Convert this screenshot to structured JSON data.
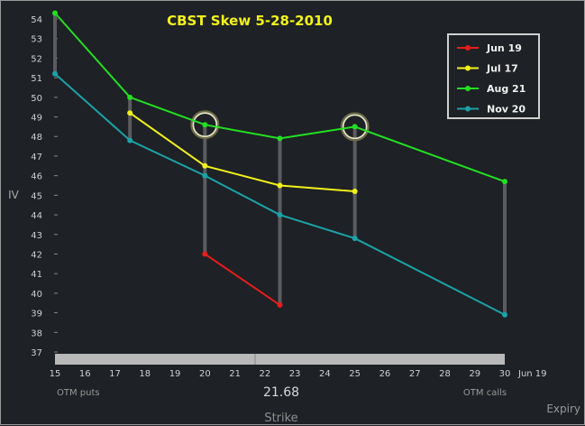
{
  "chart_data": {
    "type": "line",
    "title": "CBST Skew 5-28-2010",
    "xlabel": "Strike",
    "ylabel": "IV",
    "xlim": [
      15,
      30
    ],
    "ylim": [
      37,
      54.5
    ],
    "x_ticks": [
      "15",
      "16",
      "17",
      "18",
      "19",
      "20",
      "21",
      "22",
      "23",
      "24",
      "25",
      "26",
      "27",
      "28",
      "29",
      "30"
    ],
    "y_ticks": [
      "37",
      "38",
      "39",
      "40",
      "41",
      "42",
      "43",
      "44",
      "45",
      "46",
      "47",
      "48",
      "49",
      "50",
      "51",
      "52",
      "53",
      "54"
    ],
    "extra_x_label": "Jun 19",
    "stock_price_label": "21.68",
    "stock_price": 21.68,
    "left_note": "OTM puts",
    "right_note": "OTM calls",
    "corner_label": "Expiry",
    "legend_position": "top-right",
    "series": [
      {
        "name": "Jun 19",
        "color": "#e81c1c",
        "x": [
          20,
          22.5
        ],
        "values": [
          42.0,
          39.4
        ]
      },
      {
        "name": "Jul 17",
        "color": "#f2f21a",
        "x": [
          17.5,
          20,
          22.5,
          25
        ],
        "values": [
          49.2,
          46.5,
          45.5,
          45.2
        ]
      },
      {
        "name": "Aug 21",
        "color": "#22e022",
        "x": [
          15,
          17.5,
          20,
          22.5,
          25,
          30
        ],
        "values": [
          54.3,
          50.0,
          48.6,
          47.9,
          48.5,
          45.7
        ]
      },
      {
        "name": "Nov 20",
        "color": "#1aa3a8",
        "x": [
          15,
          17.5,
          20,
          22.5,
          25,
          30
        ],
        "values": [
          51.2,
          47.8,
          46.0,
          44.0,
          42.8,
          38.9
        ]
      }
    ],
    "highlighted_strikes": [
      20,
      25
    ]
  }
}
